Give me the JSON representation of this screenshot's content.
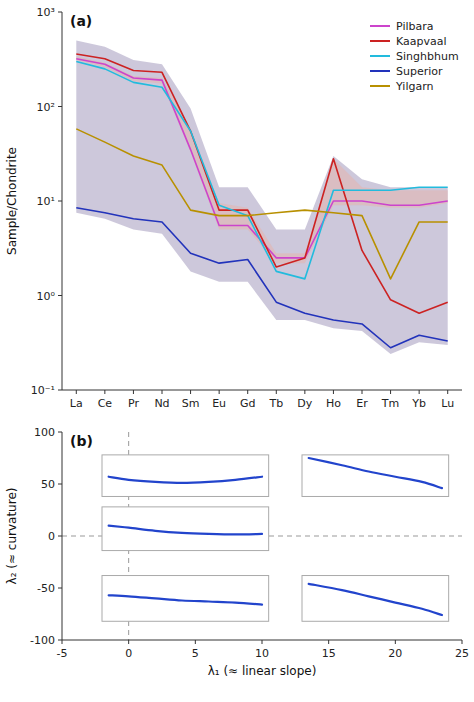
{
  "chart_data": [
    {
      "type": "line",
      "title": "(a)",
      "log": "y",
      "grid": false,
      "legend": "upper right",
      "y_label": "Sample/Chondrite",
      "categories": [
        "La",
        "Ce",
        "Pr",
        "Nd",
        "Sm",
        "Eu",
        "Gd",
        "Tb",
        "Dy",
        "Ho",
        "Er",
        "Tm",
        "Yb",
        "Lu"
      ],
      "ylim": [
        0.1,
        1000
      ],
      "yticks": [
        {
          "value": 0.1,
          "label": "10⁻¹"
        },
        {
          "value": 1,
          "label": "10⁰"
        },
        {
          "value": 10,
          "label": "10¹"
        },
        {
          "value": 100,
          "label": "10²"
        },
        {
          "value": 1000,
          "label": "10³"
        }
      ],
      "series": [
        {
          "name": "Pilbara",
          "color": "#cc44cc",
          "values": [
            320,
            280,
            200,
            190,
            35,
            5.5,
            5.5,
            2.5,
            2.5,
            10,
            10,
            9,
            9,
            10
          ]
        },
        {
          "name": "Kaapvaal",
          "color": "#cc2222",
          "values": [
            360,
            320,
            240,
            230,
            55,
            8.0,
            8.0,
            2.0,
            2.5,
            28,
            3.0,
            0.9,
            0.65,
            0.85
          ]
        },
        {
          "name": "Singhbhum",
          "color": "#22bbdd",
          "values": [
            300,
            250,
            180,
            160,
            55,
            9.0,
            7.0,
            1.8,
            1.5,
            13,
            13,
            13,
            14,
            14
          ]
        },
        {
          "name": "Superior",
          "color": "#2233bb",
          "values": [
            8.5,
            7.5,
            6.5,
            6.0,
            2.8,
            2.2,
            2.4,
            0.85,
            0.65,
            0.55,
            0.5,
            0.28,
            0.38,
            0.33
          ]
        },
        {
          "name": "Yilgarn",
          "color": "#b89000",
          "values": [
            58,
            42,
            30,
            24,
            8.0,
            7.0,
            7.0,
            7.5,
            8.0,
            7.5,
            7.0,
            1.5,
            6.0,
            6.0
          ]
        },
        {
          "type": "area",
          "color": "#b8b0cc",
          "values": [
            500,
            430,
            310,
            280,
            95,
            14,
            14,
            5.0,
            5.0,
            30,
            17,
            14,
            14,
            14
          ],
          "lower": [
            7.5,
            6.5,
            5.0,
            4.5,
            1.8,
            1.4,
            1.4,
            0.55,
            0.55,
            0.45,
            0.42,
            0.24,
            0.32,
            0.3
          ]
        },
        {
          "type": "area",
          "color": "#e0b8b8",
          "values": [
            340,
            290,
            210,
            200,
            58,
            9.5,
            8.5,
            2.8,
            2.8,
            28,
            14,
            13,
            13,
            13
          ],
          "lower": [
            310,
            260,
            185,
            175,
            33,
            5.0,
            5.0,
            2.2,
            2.2,
            9.0,
            9.0,
            8.5,
            8.5,
            9.5
          ]
        }
      ]
    },
    {
      "type": "line",
      "title": "(b)",
      "grid": false,
      "x_label": "λ₁ (≈ linear slope)",
      "y_label": "λ₂ (≈ curvature)",
      "xlim": [
        -5,
        25
      ],
      "ylim": [
        -100,
        100
      ],
      "xticks": [
        -5,
        0,
        5,
        10,
        15,
        20,
        25
      ],
      "yticks": [
        -100,
        -50,
        0,
        50,
        100
      ],
      "reference_lines": {
        "x": [
          0
        ],
        "y": [
          0
        ]
      },
      "series": [
        {
          "color": "#2244cc",
          "box_x": [
            -2.0,
            10.5
          ],
          "box_y": [
            38,
            78
          ],
          "x": [
            -1.5,
            0,
            2,
            4,
            6,
            8,
            10.0
          ],
          "values": [
            57,
            54,
            52,
            51,
            52,
            54,
            57
          ]
        },
        {
          "color": "#2244cc",
          "box_x": [
            13.0,
            24.0
          ],
          "box_y": [
            38,
            78
          ],
          "x": [
            13.5,
            16,
            18,
            20,
            22,
            23.5
          ],
          "values": [
            75,
            68,
            62,
            57,
            52,
            46
          ]
        },
        {
          "color": "#2244cc",
          "box_x": [
            -2.0,
            10.5
          ],
          "box_y": [
            -14,
            28
          ],
          "x": [
            -1.5,
            0,
            2,
            4,
            6,
            8,
            10.0
          ],
          "values": [
            10,
            8,
            5,
            3,
            2,
            1.5,
            2
          ]
        },
        {
          "color": "#2244cc",
          "box_x": [
            -2.0,
            10.5
          ],
          "box_y": [
            -82,
            -38
          ],
          "x": [
            -1.5,
            0,
            2,
            4,
            6,
            8,
            10.0
          ],
          "values": [
            -57,
            -58,
            -60,
            -62,
            -63,
            -64,
            -66
          ]
        },
        {
          "color": "#2244cc",
          "box_x": [
            13.0,
            24.0
          ],
          "box_y": [
            -82,
            -38
          ],
          "x": [
            13.5,
            16,
            18,
            20,
            22,
            23.5
          ],
          "values": [
            -46,
            -52,
            -58,
            -64,
            -70,
            -76
          ]
        }
      ]
    }
  ]
}
